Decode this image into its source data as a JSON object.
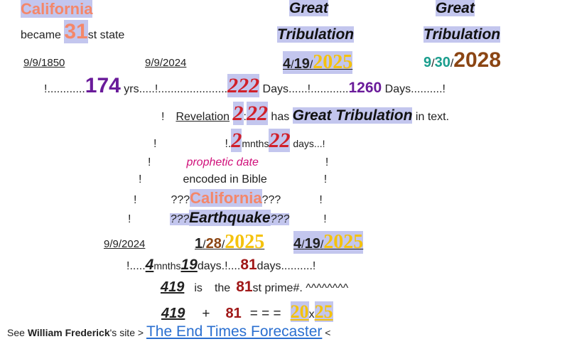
{
  "groups": [
    [
      "California"
    ],
    [
      "Great"
    ],
    [
      "Great"
    ],
    [
      "became ",
      "31",
      "st state"
    ],
    [
      "Tribulation"
    ],
    [
      "Tribulation"
    ],
    [
      "9/9/1850"
    ],
    [
      "9/9/2024"
    ],
    [
      "4",
      "/",
      "19",
      "/",
      "2025"
    ],
    [
      "9",
      "/",
      "30",
      "/",
      "2028"
    ],
    [
      "!............",
      "174",
      " yrs.....!......................",
      "222",
      " Days......!............",
      "1260",
      " Days..........!"
    ],
    [
      "!",
      "Revelation",
      "2",
      ":",
      "22",
      " has ",
      "Great Tribulation",
      " in text."
    ],
    [
      "!",
      "!.",
      "2",
      "mnths",
      "22",
      " days...!"
    ],
    [
      "!",
      "prophetic date",
      "!"
    ],
    [
      "!",
      "encoded in Bible",
      "!"
    ],
    [
      "!",
      "???",
      "California",
      "???",
      "!"
    ],
    [
      "!",
      "???",
      "Earthquake",
      "???",
      "!"
    ],
    [
      "9/9/2024"
    ],
    [
      "1",
      "/",
      "28",
      "/",
      "2025"
    ],
    [
      "4",
      "/",
      "19",
      "/",
      "2025"
    ],
    [
      "!.....",
      "4",
      "mnths",
      "19",
      "days.!....",
      "81",
      "days..........!"
    ],
    [
      "419",
      "is",
      "the",
      "81",
      "st prime#. ^^^^^^^^"
    ],
    [
      "419",
      "+",
      "81",
      "= = =",
      "20",
      "x",
      "25"
    ],
    [
      "See ",
      "William Frederick",
      "'s site > ",
      "The End Times Forecaster",
      " <"
    ]
  ]
}
